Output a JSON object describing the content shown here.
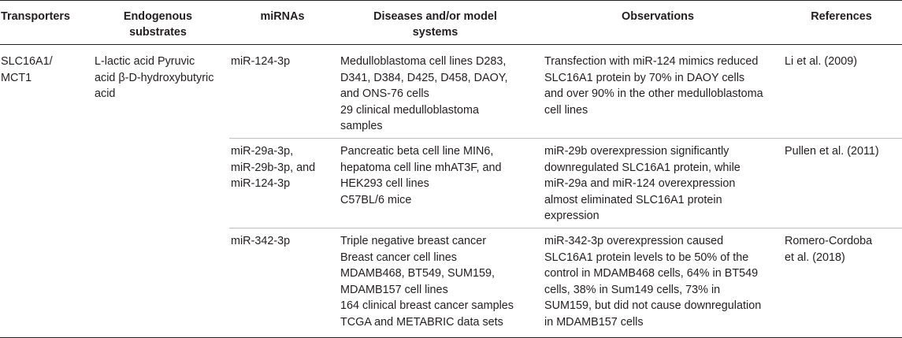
{
  "headers": {
    "transporters": "Transporters",
    "substrates_1": "Endogenous",
    "substrates_2": "substrates",
    "mirnas": "miRNAs",
    "diseases_1": "Diseases and/or model",
    "diseases_2": "systems",
    "observations": "Observations",
    "references": "References"
  },
  "transporter": {
    "line1": "SLC16A1/",
    "line2": "MCT1"
  },
  "substrates": {
    "line1": "L-lactic acid Pyruvic",
    "line2": "acid β-D-hydroxybutyric",
    "line3": "acid"
  },
  "rows": [
    {
      "mirnas": [
        "miR-124-3p"
      ],
      "diseases": [
        "Medulloblastoma cell lines D283,",
        "D341, D384, D425, D458, DAOY,",
        "and ONS-76 cells",
        "29 clinical medulloblastoma",
        "samples"
      ],
      "observations": [
        "Transfection with miR-124 mimics reduced",
        "SLC16A1 protein by 70% in DAOY cells",
        "and over 90% in the other medulloblastoma",
        "cell lines"
      ],
      "references": [
        "Li et al. (2009)"
      ]
    },
    {
      "mirnas": [
        "miR-29a-3p,",
        "miR-29b-3p, and",
        "miR-124-3p"
      ],
      "diseases": [
        "Pancreatic beta cell line MIN6,",
        "hepatoma cell line mhAT3F, and",
        "HEK293 cell lines",
        "C57BL/6 mice"
      ],
      "observations": [
        "miR-29b overexpression significantly",
        "downregulated SLC16A1 protein, while",
        "miR-29a and miR-124 overexpression",
        "almost eliminated SLC16A1 protein",
        "expression"
      ],
      "references": [
        "Pullen et al. (2011)"
      ]
    },
    {
      "mirnas": [
        "miR-342-3p"
      ],
      "diseases": [
        "Triple negative breast cancer",
        "Breast cancer cell lines",
        "MDAMB468, BT549, SUM159,",
        "MDAMB157 cell lines",
        "164 clinical breast cancer samples",
        "TCGA and METABRIC data sets"
      ],
      "observations": [
        "miR-342-3p overexpression caused",
        "SLC16A1 protein levels to be 50% of the",
        "control in MDAMB468 cells, 64% in BT549",
        "cells, 38% in Sum149 cells, 73% in",
        "SUM159, but did not cause downregulation",
        "in MDAMB157 cells"
      ],
      "references": [
        "Romero-Cordoba",
        "et al. (2018)"
      ]
    }
  ]
}
